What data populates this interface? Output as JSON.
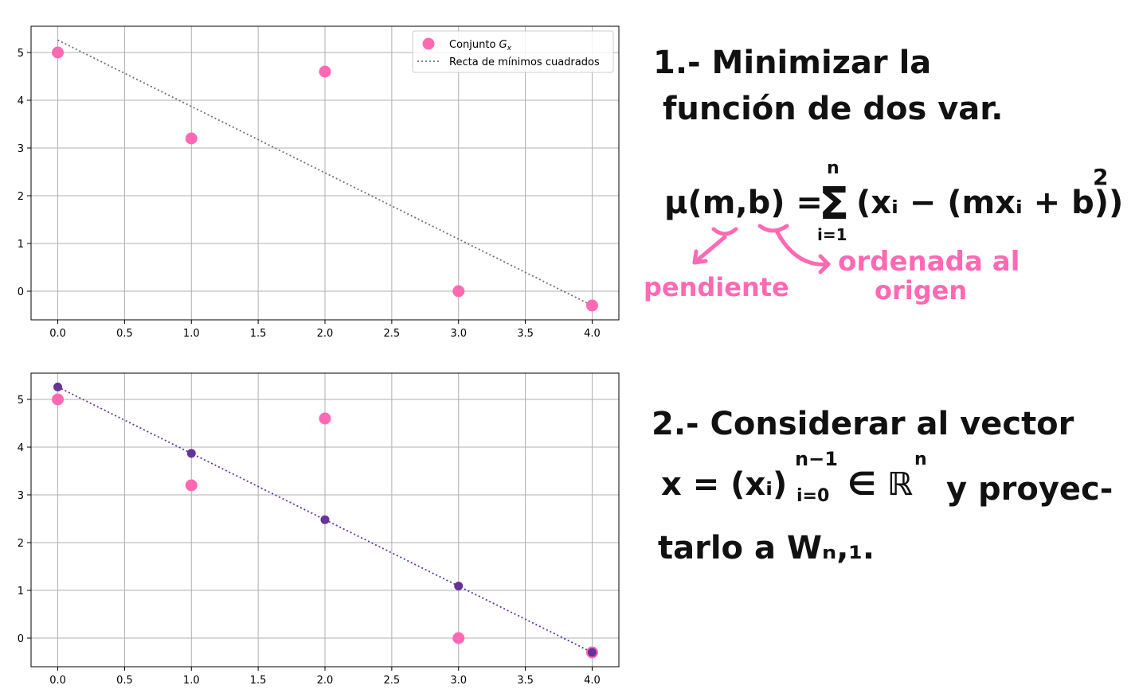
{
  "chart_data": [
    {
      "type": "scatter",
      "x": [
        0.0,
        1.0,
        2.0,
        3.0,
        4.0
      ],
      "series": [
        {
          "name": "Conjunto G_x",
          "kind": "points",
          "y": [
            5.0,
            3.2,
            4.6,
            0.0,
            -0.3
          ],
          "color": "#ff69b4"
        },
        {
          "name": "Recta de mínimos cuadrados",
          "kind": "line",
          "y": [
            5.26,
            3.87,
            2.48,
            1.09,
            -0.3
          ],
          "color": "#707070",
          "style": "dotted"
        }
      ],
      "legend": {
        "location": "upper right",
        "items": [
          {
            "label_prefix": "Conjunto ",
            "label_math": "G",
            "label_sub": "x"
          },
          {
            "label_prefix": "Recta de mínimos cuadrados",
            "label_math": "",
            "label_sub": ""
          }
        ]
      },
      "xlim": [
        -0.2,
        4.2
      ],
      "ylim": [
        -0.6,
        5.55
      ],
      "xticks": [
        "0.0",
        "0.5",
        "1.0",
        "1.5",
        "2.0",
        "2.5",
        "3.0",
        "3.5",
        "4.0"
      ],
      "yticks": [
        "0",
        "1",
        "2",
        "3",
        "4",
        "5"
      ],
      "grid": true
    },
    {
      "type": "scatter",
      "x": [
        0.0,
        1.0,
        2.0,
        3.0,
        4.0
      ],
      "series": [
        {
          "name": "",
          "kind": "points",
          "y": [
            5.0,
            3.2,
            4.6,
            0.0,
            -0.3
          ],
          "color": "#ff69b4"
        },
        {
          "name": "",
          "kind": "projected-points",
          "y": [
            5.26,
            3.87,
            2.48,
            1.09,
            -0.3
          ],
          "color": "#663399"
        },
        {
          "name": "",
          "kind": "line",
          "y": [
            5.26,
            3.87,
            2.48,
            1.09,
            -0.3
          ],
          "color": "#663399",
          "style": "dotted"
        }
      ],
      "xlim": [
        -0.2,
        4.2
      ],
      "ylim": [
        -0.6,
        5.55
      ],
      "xticks": [
        "0.0",
        "0.5",
        "1.0",
        "1.5",
        "2.0",
        "2.5",
        "3.0",
        "3.5",
        "4.0"
      ],
      "yticks": [
        "0",
        "1",
        "2",
        "3",
        "4",
        "5"
      ],
      "grid": true
    }
  ],
  "notes": {
    "step1_line1": "1.- Minimizar la",
    "step1_line2": "función de dos var.",
    "formula_lhs": "μ(m,b) =",
    "formula_sum": "Σ",
    "formula_sum_top": "n",
    "formula_sum_bottom": "i=1",
    "formula_rhs": "(xᵢ − (mxᵢ + b))",
    "formula_exp": "2",
    "annot_m": "pendiente",
    "annot_b_line1": "ordenada al",
    "annot_b_line2": "origen",
    "step2_line1": "2.- Considerar al vector",
    "step2_line2a": "x = (xᵢ)",
    "step2_line2_sup": "n−1",
    "step2_line2_sub": "i=0",
    "step2_line2b": "∈ ℝ",
    "step2_line2_supn": "n",
    "step2_line2c": "y proyec-",
    "step2_line3": "tarlo a Wₙ,₁."
  },
  "colors": {
    "pink": "#ff69b4",
    "purple": "#663399",
    "fit_gray": "#707070",
    "grid": "#b0b0b0",
    "ink": "#111111"
  }
}
